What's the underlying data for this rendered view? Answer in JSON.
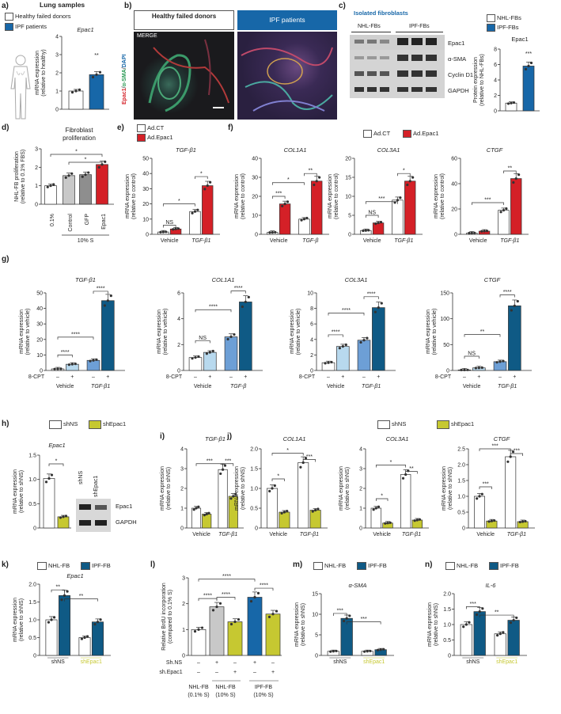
{
  "colors": {
    "white": "#ffffff",
    "blue": "#1767a8",
    "red": "#d42027",
    "ltgray": "#c8c8c8",
    "dkgray": "#8e8e8e",
    "ltblue": "#b8d9ee",
    "midblue": "#6d9fd6",
    "navy": "#0f5a85",
    "yellow": "#c6c831"
  },
  "panels": {
    "a": {
      "letter": "a)",
      "title": "Lung samples",
      "legend": [
        "Healthy failed donors",
        "IPF patients"
      ],
      "gene": "Epac1",
      "ylabel": "mRNA expression",
      "ylabel2": "(relative to healthy)",
      "yticks": [
        "0",
        "1",
        "2",
        "3",
        "4"
      ],
      "sig": "**"
    },
    "b": {
      "letter": "b)",
      "header_left": "Healthy failed donors",
      "header_right": "IPF patients",
      "merge": "MERGE",
      "stain_epac": "Epac1",
      "stain_sma": "α-SMA",
      "stain_dapi": "DAPI"
    },
    "c": {
      "letter": "c)",
      "title": "Isolated fibroblasts",
      "col_left": "NHL-FBs",
      "col_right": "IPF-FBs",
      "bands": [
        "Epac1",
        "α-SMA",
        "Cyclin D1",
        "GAPDH"
      ],
      "legend": [
        "NHL-FBs",
        "IPF-FBs"
      ],
      "chart_title": "Epac1",
      "ylabel": "Protein expression",
      "ylabel2": "(relative to NHL-FBs)",
      "yticks": [
        "0",
        "2",
        "4",
        "6",
        "8"
      ],
      "sig": "***"
    },
    "d": {
      "letter": "d)",
      "title": "Fibroblast",
      "title2": "proliferation",
      "ylabel": "NHL-FB proliferation",
      "ylabel2": "(relative to 0.1% FBS)",
      "yticks": [
        "0",
        "1",
        "2",
        "3"
      ],
      "xlabels": [
        "0.1%",
        "Control",
        "GFP",
        "Epac1"
      ],
      "group": "10% S",
      "sig": [
        "*",
        "*"
      ]
    },
    "e": {
      "letter": "e)",
      "legend": [
        "Ad.CT",
        "Ad.Epac1"
      ],
      "gene": "TGF-β1",
      "ylabel": "mRNA expression",
      "ylabel2": "(relative to control)",
      "yticks": [
        "0",
        "10",
        "20",
        "30",
        "40",
        "50"
      ],
      "xlabels": [
        "Vehicle",
        "TGF-β1"
      ],
      "sig": [
        "NS",
        "*",
        "*"
      ]
    },
    "f": {
      "letter": "f)",
      "legend": [
        "Ad.CT",
        "Ad.Epac1"
      ],
      "charts": [
        {
          "gene": "COL1A1",
          "yticks": [
            "0",
            "10",
            "20",
            "30",
            "40"
          ],
          "xlabels": [
            "Vehicle",
            "TGF-β"
          ],
          "sig": [
            "***",
            "*",
            "**"
          ]
        },
        {
          "gene": "COL3A1",
          "yticks": [
            "0",
            "5",
            "10",
            "15",
            "20"
          ],
          "xlabels": [
            "Vehicle",
            "TGF-β1"
          ],
          "sig": [
            "NS",
            "***",
            "*"
          ]
        },
        {
          "gene": "CTGF",
          "yticks": [
            "0",
            "20",
            "40",
            "60"
          ],
          "xlabels": [
            "Vehicle",
            "TGF-β1"
          ],
          "sig": [
            "***",
            "**"
          ]
        }
      ],
      "ylabel": "mRNA expression",
      "ylabel2": "(relative to control)"
    },
    "g": {
      "letter": "g)",
      "cpt": "8-CPT",
      "signs": [
        "–",
        "+",
        "–",
        "+"
      ],
      "ylabel": "mRNA expression",
      "ylabel2": "(relative to vehicle)",
      "charts": [
        {
          "gene": "TGF-β1",
          "yticks": [
            "0",
            "10",
            "20",
            "30",
            "40",
            "50"
          ],
          "xlabels": [
            "Vehicle",
            "TGF-β1"
          ],
          "sig": [
            "****",
            "****"
          ]
        },
        {
          "gene": "COL1A1",
          "yticks": [
            "0",
            "2",
            "4",
            "6"
          ],
          "xlabels": [
            "Vehicle",
            "TGF-β"
          ],
          "sig": [
            "NS",
            "****",
            "****"
          ]
        },
        {
          "gene": "COL3A1",
          "yticks": [
            "0",
            "2",
            "4",
            "6",
            "8",
            "10"
          ],
          "xlabels": [
            "Vehicle",
            "TGF-β1"
          ],
          "sig": [
            "****",
            "****",
            "****"
          ]
        },
        {
          "gene": "CTGF",
          "yticks": [
            "0",
            "50",
            "100",
            "150"
          ],
          "xlabels": [
            "Vehicle",
            "TGF-β1"
          ],
          "sig": [
            "NS",
            "**",
            "****"
          ]
        }
      ]
    },
    "h": {
      "letter": "h)",
      "legend": [
        "shNS",
        "shEpac1"
      ],
      "gene": "Epac1",
      "ylabel": "mRNA expression",
      "ylabel2": "(relative to shNS)",
      "yticks": [
        "0",
        "0.5",
        "1.0",
        "1.5"
      ],
      "sig": "*",
      "blot_cols": [
        "shNS",
        "shEpac1"
      ],
      "blot_rows": [
        "Epac1",
        "GAPDH"
      ]
    },
    "i": {
      "letter": "i)",
      "gene": "TGF-β1",
      "ylabel": "mRNA expression",
      "ylabel2": "(relative to shNS)",
      "yticks": [
        "0",
        "1",
        "2",
        "3",
        "4"
      ],
      "xlabels": [
        "Vehicle",
        "TGF-β1"
      ],
      "sig": [
        "***",
        "***"
      ]
    },
    "j": {
      "letter": "j)",
      "legend": [
        "shNS",
        "shEpac1"
      ],
      "ylabel": "mRNA expression",
      "ylabel2": "(relative to shNS)",
      "charts": [
        {
          "gene": "COL1A1",
          "yticks": [
            "0",
            "0.5",
            "1.0",
            "1.5",
            "2.0"
          ],
          "xlabels": [
            "Vehicle",
            "TGF-β1"
          ],
          "sig": [
            "*",
            "*",
            "***"
          ]
        },
        {
          "gene": "COL3A1",
          "yticks": [
            "0",
            "1",
            "2",
            "3",
            "4"
          ],
          "xlabels": [
            "Vehicle",
            "TGF-β1"
          ],
          "sig": [
            "*",
            "*",
            "**"
          ]
        },
        {
          "gene": "CTGF",
          "yticks": [
            "0",
            "0.5",
            "1.0",
            "1.5",
            "2.0",
            "2.5"
          ],
          "xlabels": [
            "Vehicle",
            "TGF-β1"
          ],
          "sig": [
            "***",
            "***",
            "***"
          ]
        }
      ]
    },
    "k": {
      "letter": "k)",
      "legend": [
        "NHL-FB",
        "IPF-FB"
      ],
      "gene": "Epac1",
      "ylabel": "mRNA expression",
      "ylabel2": "(relative to shNS)",
      "yticks": [
        "0",
        "0.5",
        "1.0",
        "1.5",
        "2.0"
      ],
      "xlabels": [
        "shNS",
        "shEpac1"
      ],
      "sig": [
        "**",
        "**"
      ]
    },
    "l": {
      "letter": "l)",
      "ylabel": "Relative BrdU incorporation",
      "ylabel2": "(compared to 0.1% S)",
      "yticks": [
        "0",
        "1",
        "2",
        "3"
      ],
      "rows": [
        "Sh.NS",
        "sh.Epac1"
      ],
      "row1": [
        "–",
        "+",
        "–",
        "+",
        "–"
      ],
      "row2": [
        "–",
        "–",
        "+",
        "–",
        "+"
      ],
      "groups": [
        "NHL-FB",
        "(0.1% S)",
        "NHL-FB",
        "(10% S)",
        "IPF-FB",
        "(10% S)"
      ],
      "sig": [
        "****",
        "****",
        "****",
        "****"
      ]
    },
    "m": {
      "letter": "m)",
      "legend": [
        "NHL-FB",
        "IPF-FB"
      ],
      "gene": "α-SMA",
      "ylabel": "mRNA expression",
      "ylabel2": "(relative to shNS)",
      "yticks": [
        "0",
        "5",
        "10",
        "15"
      ],
      "xlabels": [
        "shNS",
        "shEpac1"
      ],
      "sig": [
        "***",
        "***"
      ]
    },
    "n": {
      "letter": "n)",
      "legend": [
        "NHL-FB",
        "IPF-FB"
      ],
      "gene": "IL-6",
      "ylabel": "mRNA expression",
      "ylabel2": "(relative to shNS)",
      "yticks": [
        "0",
        "0.5",
        "1.0",
        "1.5",
        "2.0"
      ],
      "xlabels": [
        "shNS",
        "shEpac1"
      ],
      "sig": [
        "***",
        "**"
      ]
    }
  },
  "chart_data": [
    {
      "id": "a",
      "type": "bar",
      "title": "Epac1",
      "categories": [
        "Healthy failed donors",
        "IPF patients"
      ],
      "values": [
        1.0,
        1.9
      ],
      "ylim": [
        0,
        4
      ],
      "ylabel": "mRNA expression (relative to healthy)"
    },
    {
      "id": "c",
      "type": "bar",
      "title": "Epac1",
      "categories": [
        "NHL-FBs",
        "IPF-FBs"
      ],
      "values": [
        1.0,
        5.8
      ],
      "ylim": [
        0,
        8
      ],
      "ylabel": "Protein expression (relative to NHL-FBs)"
    },
    {
      "id": "d",
      "type": "bar",
      "title": "Fibroblast proliferation",
      "categories": [
        "0.1%",
        "Control",
        "GFP",
        "Epac1"
      ],
      "values": [
        1.0,
        1.55,
        1.6,
        2.15
      ],
      "ylim": [
        0,
        3
      ],
      "ylabel": "NHL-FB proliferation (relative to 0.1% FBS)"
    },
    {
      "id": "e",
      "type": "bar",
      "title": "TGF-β1",
      "categories": [
        "Vehicle",
        "TGF-β1"
      ],
      "series": [
        {
          "name": "Ad.CT",
          "values": [
            1.5,
            15
          ]
        },
        {
          "name": "Ad.Epac1",
          "values": [
            3.5,
            32
          ]
        }
      ],
      "ylim": [
        0,
        50
      ]
    },
    {
      "id": "f1",
      "type": "bar",
      "title": "COL1A1",
      "categories": [
        "Vehicle",
        "TGF-β"
      ],
      "series": [
        {
          "name": "Ad.CT",
          "values": [
            1,
            8
          ]
        },
        {
          "name": "Ad.Epac1",
          "values": [
            16,
            28
          ]
        }
      ],
      "ylim": [
        0,
        40
      ]
    },
    {
      "id": "f2",
      "type": "bar",
      "title": "COL3A1",
      "categories": [
        "Vehicle",
        "TGF-β1"
      ],
      "series": [
        {
          "name": "Ad.CT",
          "values": [
            1,
            9
          ]
        },
        {
          "name": "Ad.Epac1",
          "values": [
            3,
            14
          ]
        }
      ],
      "ylim": [
        0,
        20
      ]
    },
    {
      "id": "f3",
      "type": "bar",
      "title": "CTGF",
      "categories": [
        "Vehicle",
        "TGF-β1"
      ],
      "series": [
        {
          "name": "Ad.CT",
          "values": [
            1,
            19
          ]
        },
        {
          "name": "Ad.Epac1",
          "values": [
            2.5,
            44
          ]
        }
      ],
      "ylim": [
        0,
        60
      ]
    },
    {
      "id": "g1",
      "type": "bar",
      "title": "TGF-β1",
      "categories": [
        "Vehicle –",
        "Vehicle +",
        "TGF-β1 –",
        "TGF-β1 +"
      ],
      "values": [
        1,
        4,
        6.5,
        45
      ],
      "ylim": [
        0,
        50
      ]
    },
    {
      "id": "g2",
      "type": "bar",
      "title": "COL1A1",
      "categories": [
        "Vehicle –",
        "Vehicle +",
        "TGF-β –",
        "TGF-β +"
      ],
      "values": [
        1,
        1.4,
        2.6,
        5.3
      ],
      "ylim": [
        0,
        6
      ]
    },
    {
      "id": "g3",
      "type": "bar",
      "title": "COL3A1",
      "categories": [
        "Vehicle –",
        "Vehicle +",
        "TGF-β1 –",
        "TGF-β1 +"
      ],
      "values": [
        1,
        3.1,
        3.9,
        8.1
      ],
      "ylim": [
        0,
        10
      ]
    },
    {
      "id": "g4",
      "type": "bar",
      "title": "CTGF",
      "categories": [
        "Vehicle –",
        "Vehicle +",
        "TGF-β1 –",
        "TGF-β1 +"
      ],
      "values": [
        1,
        5,
        17,
        125
      ],
      "ylim": [
        0,
        150
      ]
    },
    {
      "id": "h",
      "type": "bar",
      "title": "Epac1",
      "categories": [
        "shNS",
        "shEpac1"
      ],
      "values": [
        1.02,
        0.23
      ],
      "ylim": [
        0,
        1.5
      ]
    },
    {
      "id": "i",
      "type": "bar",
      "title": "TGF-β1",
      "categories": [
        "Vehicle",
        "TGF-β1"
      ],
      "series": [
        {
          "name": "shNS",
          "values": [
            1.0,
            2.95
          ]
        },
        {
          "name": "shEpac1",
          "values": [
            0.7,
            1.6
          ]
        }
      ],
      "ylim": [
        0,
        4
      ]
    },
    {
      "id": "j1",
      "type": "bar",
      "title": "COL1A1",
      "categories": [
        "Vehicle",
        "TGF-β1"
      ],
      "series": [
        {
          "name": "shNS",
          "values": [
            1.0,
            1.65
          ]
        },
        {
          "name": "shEpac1",
          "values": [
            0.4,
            0.45
          ]
        }
      ],
      "ylim": [
        0,
        2
      ]
    },
    {
      "id": "j2",
      "type": "bar",
      "title": "COL3A1",
      "categories": [
        "Vehicle",
        "TGF-β1"
      ],
      "series": [
        {
          "name": "shNS",
          "values": [
            1.0,
            2.7
          ]
        },
        {
          "name": "shEpac1",
          "values": [
            0.25,
            0.4
          ]
        }
      ],
      "ylim": [
        0,
        4
      ]
    },
    {
      "id": "j3",
      "type": "bar",
      "title": "CTGF",
      "categories": [
        "Vehicle",
        "TGF-β1"
      ],
      "series": [
        {
          "name": "shNS",
          "values": [
            1.0,
            2.25
          ]
        },
        {
          "name": "shEpac1",
          "values": [
            0.22,
            0.2
          ]
        }
      ],
      "ylim": [
        0,
        2.5
      ]
    },
    {
      "id": "k",
      "type": "bar",
      "title": "Epac1",
      "categories": [
        "shNS",
        "shEpac1"
      ],
      "series": [
        {
          "name": "NHL-FB",
          "values": [
            1.0,
            0.5
          ]
        },
        {
          "name": "IPF-FB",
          "values": [
            1.68,
            0.94
          ]
        }
      ],
      "ylim": [
        0,
        2
      ]
    },
    {
      "id": "l",
      "type": "bar",
      "title": "Relative BrdU incorporation",
      "categories": [
        "NHL-FB 0.1% S",
        "NHL-FB 10% S sh.NS",
        "NHL-FB 10% S sh.Epac1",
        "IPF-FB 10% S sh.NS",
        "IPF-FB 10% S sh.Epac1"
      ],
      "values": [
        1.0,
        1.88,
        1.3,
        2.25,
        1.6
      ],
      "ylim": [
        0,
        3
      ]
    },
    {
      "id": "m",
      "type": "bar",
      "title": "α-SMA",
      "categories": [
        "shNS",
        "shEpac1"
      ],
      "series": [
        {
          "name": "NHL-FB",
          "values": [
            1.0,
            1.0
          ]
        },
        {
          "name": "IPF-FB",
          "values": [
            9.0,
            1.4
          ]
        }
      ],
      "ylim": [
        0,
        15
      ]
    },
    {
      "id": "n",
      "type": "bar",
      "title": "IL-6",
      "categories": [
        "shNS",
        "shEpac1"
      ],
      "series": [
        {
          "name": "NHL-FB",
          "values": [
            1.0,
            0.7
          ]
        },
        {
          "name": "IPF-FB",
          "values": [
            1.42,
            1.14
          ]
        }
      ],
      "ylim": [
        0,
        2
      ]
    }
  ]
}
